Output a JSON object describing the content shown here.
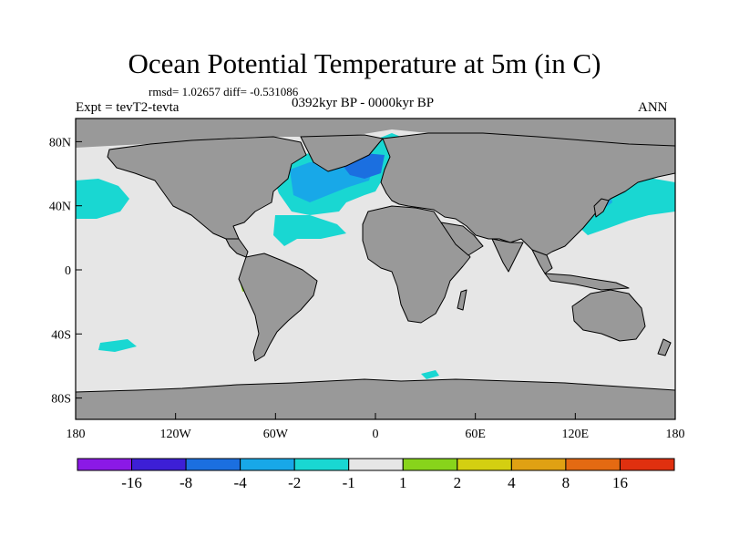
{
  "title": "Ocean Potential Temperature at 5m (in C)",
  "stats": "rmsd= 1.02657 diff= -0.531086",
  "experiment": "Expt = tevT2-tevta",
  "period": "0392kyr BP - 0000kyr BP",
  "season": "ANN",
  "lat_ticks": [
    "80N",
    "40N",
    "0",
    "40S",
    "80S"
  ],
  "lat_values": [
    80,
    40,
    0,
    -40,
    -80
  ],
  "lon_ticks": [
    "180",
    "120W",
    "60W",
    "0",
    "60E",
    "120E",
    "180"
  ],
  "lon_values": [
    -180,
    -120,
    -60,
    0,
    60,
    120,
    180
  ],
  "colorbar": {
    "labels": [
      "-16",
      "-8",
      "-4",
      "-2",
      "-1",
      "1",
      "2",
      "4",
      "8",
      "16"
    ],
    "colors": [
      "#8b19e6",
      "#3d1fd6",
      "#1b6fe0",
      "#18a8e8",
      "#19d7d2",
      "#e6e6e6",
      "#88d41b",
      "#d4cf11",
      "#e0a113",
      "#e46a12",
      "#e0300f"
    ]
  },
  "colors": {
    "land": "#999999",
    "ocean_neutral": "#e6e6e6",
    "cool_1": "#19d7d2",
    "cool_2": "#18a8e8",
    "cool_3": "#1b6fe0",
    "warm_1": "#88d41b"
  }
}
